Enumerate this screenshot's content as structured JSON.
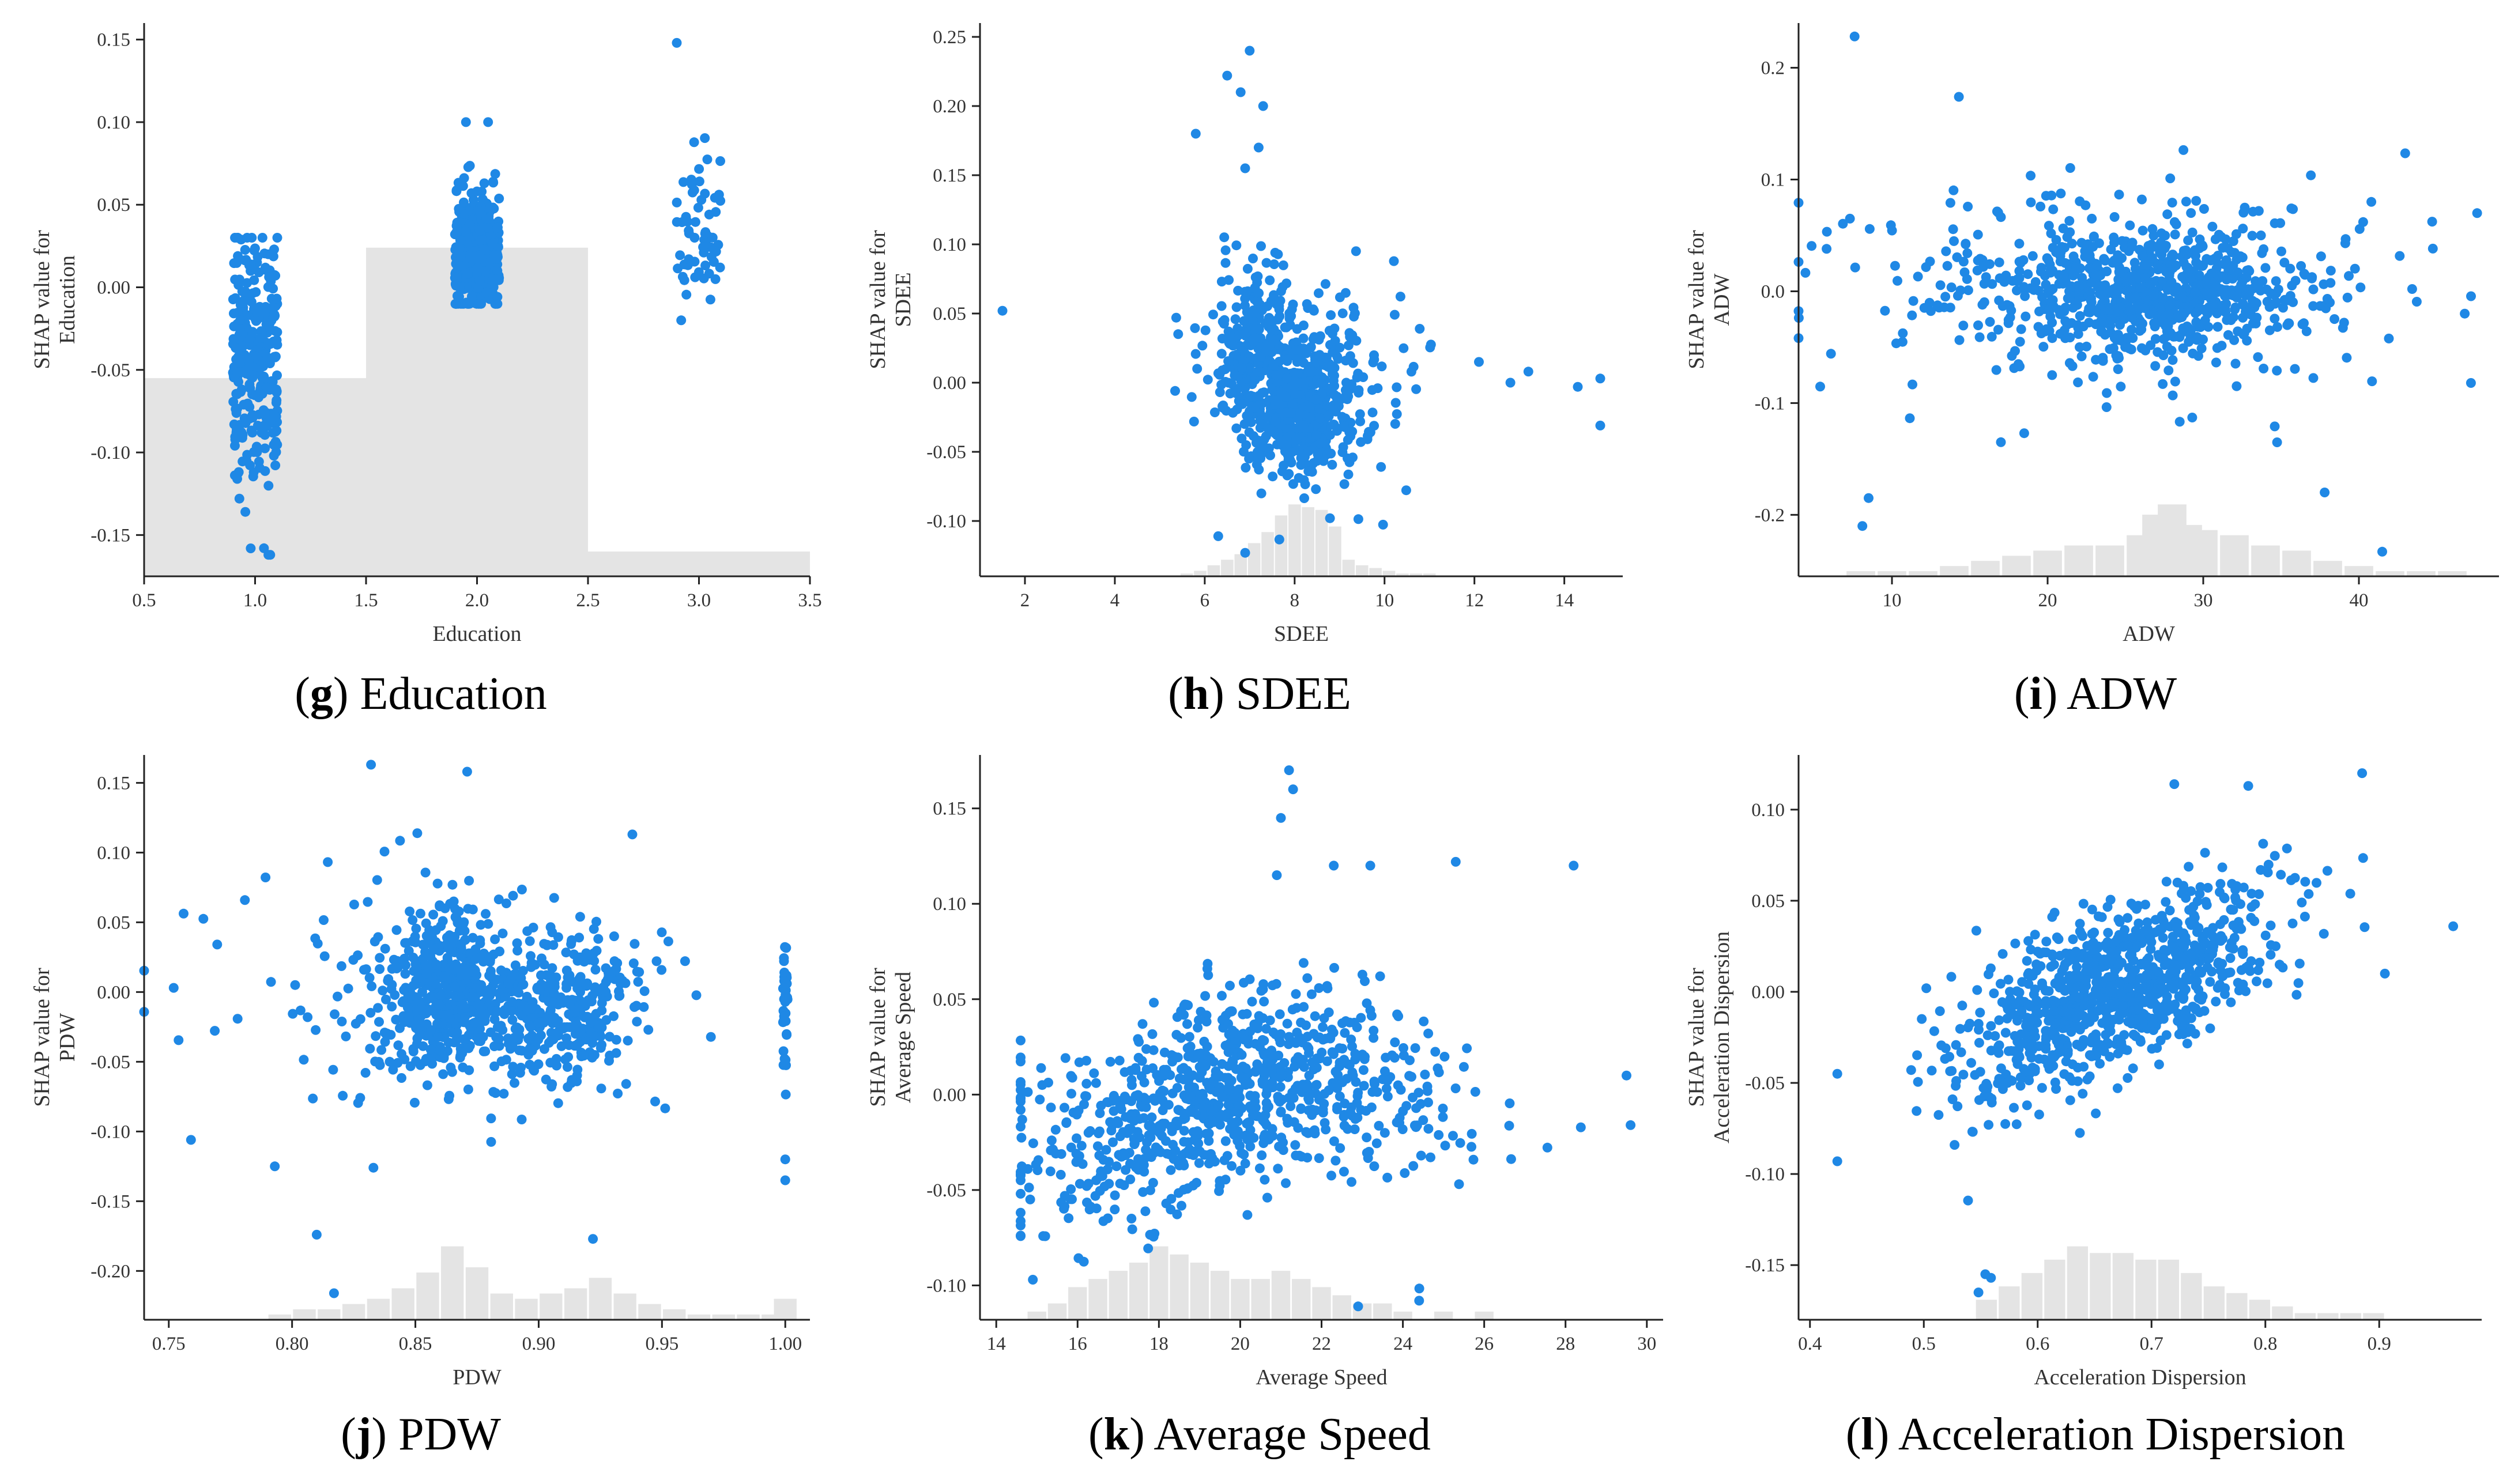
{
  "colors": {
    "points": "#1f88e5",
    "histogram": "#e4e4e4"
  },
  "chart_data": [
    {
      "type": "scatter",
      "panel_letter": "g",
      "caption": "Education",
      "xlabel": "Education",
      "ylabel": [
        "SHAP value for",
        "Education"
      ],
      "xlim": [
        0.5,
        3.5
      ],
      "ylim": [
        -0.175,
        0.16
      ],
      "xticks": [
        0.5,
        1.0,
        1.5,
        2.0,
        2.5,
        3.0,
        3.5
      ],
      "xtick_labels": [
        "0.5",
        "1.0",
        "1.5",
        "2.0",
        "2.5",
        "3.0",
        "3.5"
      ],
      "yticks": [
        -0.15,
        -0.1,
        -0.05,
        0.0,
        0.05,
        0.1,
        0.15
      ],
      "ytick_labels": [
        "-0.15",
        "-0.10",
        "-0.05",
        "0.00",
        "0.05",
        "0.10",
        "0.15"
      ],
      "background_steps": [
        {
          "x0": 0.5,
          "x1": 1.5,
          "y": -0.055
        },
        {
          "x0": 1.5,
          "x1": 2.5,
          "y": 0.024
        },
        {
          "x0": 2.5,
          "x1": 3.5,
          "y": -0.16
        }
      ],
      "groups": [
        {
          "x": 1.0,
          "xjitter": 0.1,
          "y_mean": -0.04,
          "y_std": 0.035,
          "y_min": -0.162,
          "y_max": 0.03,
          "n": 320
        },
        {
          "x": 2.0,
          "xjitter": 0.1,
          "y_mean": 0.02,
          "y_std": 0.018,
          "y_min": -0.01,
          "y_max": 0.1,
          "n": 450
        },
        {
          "x": 3.0,
          "xjitter": 0.1,
          "y_mean": 0.035,
          "y_std": 0.02,
          "y_min": -0.02,
          "y_max": 0.148,
          "n": 60
        }
      ],
      "points": [
        {
          "x": 2.9,
          "y": 0.148
        },
        {
          "x": 2.92,
          "y": -0.02
        },
        {
          "x": 1.04,
          "y": -0.158
        },
        {
          "x": 1.06,
          "y": -0.162
        },
        {
          "x": 1.1,
          "y": 0.03
        },
        {
          "x": 1.95,
          "y": 0.1
        },
        {
          "x": 2.05,
          "y": 0.1
        }
      ]
    },
    {
      "type": "scatter",
      "panel_letter": "h",
      "caption": "SDEE",
      "xlabel": "SDEE",
      "ylabel": [
        "SHAP value for",
        "SDEE"
      ],
      "xlim": [
        1,
        15.3
      ],
      "ylim": [
        -0.14,
        0.26
      ],
      "xticks": [
        2,
        4,
        6,
        8,
        10,
        12,
        14
      ],
      "xtick_labels": [
        "2",
        "4",
        "6",
        "8",
        "10",
        "12",
        "14"
      ],
      "yticks": [
        -0.1,
        -0.05,
        0.0,
        0.05,
        0.1,
        0.15,
        0.2,
        0.25
      ],
      "ytick_labels": [
        "-0.10",
        "-0.05",
        "0.00",
        "0.05",
        "0.10",
        "0.15",
        "0.20",
        "0.25"
      ],
      "histogram": {
        "centers": [
          5.6,
          5.9,
          6.2,
          6.5,
          6.8,
          7.1,
          7.4,
          7.7,
          8.0,
          8.3,
          8.6,
          8.9,
          9.2,
          9.5,
          9.8,
          10.1,
          10.4,
          10.7,
          11.0
        ],
        "heights": [
          1,
          2,
          4,
          6,
          8,
          12,
          16,
          22,
          26,
          25,
          24,
          18,
          6,
          4,
          3,
          2,
          1,
          1,
          1
        ]
      },
      "clusters": [
        {
          "cx": 8.1,
          "cy": -0.02,
          "sx": 0.55,
          "sy": 0.022,
          "n": 430
        },
        {
          "cx": 7.1,
          "cy": 0.03,
          "sx": 0.45,
          "sy": 0.03,
          "n": 200
        },
        {
          "cx": 8.3,
          "cy": 0.0,
          "sx": 1.2,
          "sy": 0.035,
          "n": 210
        }
      ],
      "points": [
        {
          "x": 1.5,
          "y": 0.052
        },
        {
          "x": 7.0,
          "y": 0.24
        },
        {
          "x": 6.5,
          "y": 0.222
        },
        {
          "x": 6.8,
          "y": 0.21
        },
        {
          "x": 7.3,
          "y": 0.2
        },
        {
          "x": 5.8,
          "y": 0.18
        },
        {
          "x": 7.2,
          "y": 0.17
        },
        {
          "x": 6.9,
          "y": 0.155
        },
        {
          "x": 12.1,
          "y": 0.015
        },
        {
          "x": 12.8,
          "y": 0.0
        },
        {
          "x": 13.2,
          "y": 0.008
        },
        {
          "x": 14.3,
          "y": -0.003
        },
        {
          "x": 14.8,
          "y": 0.003
        },
        {
          "x": 14.8,
          "y": -0.031
        },
        {
          "x": 6.3,
          "y": -0.111
        },
        {
          "x": 6.9,
          "y": -0.123
        }
      ]
    },
    {
      "type": "scatter",
      "panel_letter": "i",
      "caption": "ADW",
      "xlabel": "ADW",
      "ylabel": [
        "SHAP value for",
        "ADW"
      ],
      "xlim": [
        4,
        49
      ],
      "ylim": [
        -0.255,
        0.24
      ],
      "xticks": [
        10,
        20,
        30,
        40
      ],
      "xtick_labels": [
        "10",
        "20",
        "30",
        "40"
      ],
      "yticks": [
        -0.2,
        -0.1,
        0.0,
        0.1,
        0.2
      ],
      "ytick_labels": [
        "-0.2",
        "-0.1",
        "0.0",
        "0.1",
        "0.2"
      ],
      "histogram": {
        "centers": [
          8,
          10,
          12,
          14,
          16,
          18,
          20,
          22,
          24,
          26,
          27,
          28,
          29,
          30,
          32,
          34,
          36,
          38,
          40,
          42,
          44,
          46
        ],
        "heights": [
          1,
          1,
          1,
          2,
          3,
          4,
          5,
          6,
          6,
          8,
          12,
          14,
          10,
          9,
          8,
          6,
          5,
          3,
          2,
          1,
          1,
          1
        ]
      },
      "clusters": [
        {
          "cx": 27,
          "cy": 0.0,
          "sx": 4.5,
          "sy": 0.025,
          "n": 520
        },
        {
          "cx": 24,
          "cy": 0.0,
          "sx": 8.5,
          "sy": 0.045,
          "n": 380
        }
      ],
      "points": [
        {
          "x": 7.6,
          "y": 0.228
        },
        {
          "x": 14.3,
          "y": 0.174
        },
        {
          "x": 17.0,
          "y": -0.135
        },
        {
          "x": 8.1,
          "y": -0.21
        },
        {
          "x": 8.5,
          "y": -0.185
        },
        {
          "x": 37.8,
          "y": -0.18
        },
        {
          "x": 41.5,
          "y": -0.233
        },
        {
          "x": 47.2,
          "y": -0.082
        },
        {
          "x": 46.8,
          "y": -0.02
        },
        {
          "x": 5.8,
          "y": 0.038
        },
        {
          "x": 7.3,
          "y": 0.065
        },
        {
          "x": 40.8,
          "y": 0.08
        }
      ]
    },
    {
      "type": "scatter",
      "panel_letter": "j",
      "caption": "PDW",
      "xlabel": "PDW",
      "ylabel": [
        "SHAP value for",
        "PDW"
      ],
      "xlim": [
        0.74,
        1.01
      ],
      "ylim": [
        -0.235,
        0.17
      ],
      "xticks": [
        0.75,
        0.8,
        0.85,
        0.9,
        0.95,
        1.0
      ],
      "xtick_labels": [
        "0.75",
        "0.80",
        "0.85",
        "0.90",
        "0.95",
        "1.00"
      ],
      "yticks": [
        -0.2,
        -0.15,
        -0.1,
        -0.05,
        0.0,
        0.05,
        0.1,
        0.15
      ],
      "ytick_labels": [
        "-0.20",
        "-0.15",
        "-0.10",
        "-0.05",
        "0.00",
        "0.05",
        "0.10",
        "0.15"
      ],
      "histogram": {
        "centers": [
          0.795,
          0.805,
          0.815,
          0.825,
          0.835,
          0.845,
          0.855,
          0.865,
          0.875,
          0.885,
          0.895,
          0.905,
          0.915,
          0.925,
          0.935,
          0.945,
          0.955,
          0.965,
          0.975,
          0.985,
          0.995,
          1.0
        ],
        "heights": [
          1,
          2,
          2,
          3,
          4,
          6,
          9,
          14,
          10,
          5,
          4,
          5,
          6,
          8,
          5,
          3,
          2,
          1,
          1,
          1,
          1,
          4
        ]
      },
      "clusters": [
        {
          "cx": 0.865,
          "cy": 0.0,
          "sx": 0.012,
          "sy": 0.03,
          "n": 380
        },
        {
          "cx": 0.91,
          "cy": -0.012,
          "sx": 0.015,
          "sy": 0.025,
          "n": 260
        },
        {
          "cx": 0.86,
          "cy": 0.0,
          "sx": 0.045,
          "sy": 0.04,
          "n": 260
        },
        {
          "cx": 1.0,
          "cy": 0.0,
          "sx": 0.0005,
          "sy": 0.03,
          "n": 40
        }
      ],
      "points": [
        {
          "x": 0.832,
          "y": 0.163
        },
        {
          "x": 0.871,
          "y": 0.158
        },
        {
          "x": 0.938,
          "y": 0.113
        },
        {
          "x": 0.759,
          "y": -0.106
        },
        {
          "x": 0.793,
          "y": -0.125
        },
        {
          "x": 0.81,
          "y": -0.174
        },
        {
          "x": 0.817,
          "y": -0.216
        },
        {
          "x": 0.833,
          "y": -0.126
        },
        {
          "x": 0.922,
          "y": -0.177
        },
        {
          "x": 1.0,
          "y": -0.135
        },
        {
          "x": 1.0,
          "y": -0.12
        },
        {
          "x": 0.752,
          "y": 0.003
        }
      ]
    },
    {
      "type": "scatter",
      "panel_letter": "k",
      "caption": "Average Speed",
      "xlabel": "Average Speed",
      "ylabel": [
        "SHAP value for",
        "Average Speed"
      ],
      "xlim": [
        13.6,
        30.4
      ],
      "ylim": [
        -0.118,
        0.178
      ],
      "xticks": [
        14,
        16,
        18,
        20,
        22,
        24,
        26,
        28,
        30
      ],
      "xtick_labels": [
        "14",
        "16",
        "18",
        "20",
        "22",
        "24",
        "26",
        "28",
        "30"
      ],
      "yticks": [
        -0.1,
        -0.05,
        0.0,
        0.05,
        0.1,
        0.15
      ],
      "ytick_labels": [
        "-0.10",
        "-0.05",
        "0.00",
        "0.05",
        "0.10",
        "0.15"
      ],
      "histogram": {
        "centers": [
          15,
          15.5,
          16,
          16.5,
          17,
          17.5,
          18,
          18.5,
          19,
          19.5,
          20,
          20.5,
          21,
          21.5,
          22,
          22.5,
          23,
          23.5,
          24,
          25,
          26
        ],
        "heights": [
          1,
          2,
          4,
          5,
          6,
          7,
          9,
          8,
          7,
          6,
          5,
          5,
          6,
          5,
          4,
          3,
          2,
          2,
          1,
          1,
          1
        ]
      },
      "trend": {
        "x": [
          15,
          17,
          19,
          21,
          23,
          25,
          27,
          29
        ],
        "y": [
          -0.03,
          -0.022,
          0.0,
          0.012,
          0.008,
          0.0,
          -0.005,
          -0.008
        ]
      },
      "trend_samples": {
        "n": 900,
        "x_mean": 19.6,
        "x_std": 2.6,
        "x_min": 14.6,
        "x_max": 29.6,
        "y_std": 0.025
      },
      "points": [
        {
          "x": 21.2,
          "y": 0.17
        },
        {
          "x": 21.3,
          "y": 0.16
        },
        {
          "x": 21.0,
          "y": 0.145
        },
        {
          "x": 25.3,
          "y": 0.122
        },
        {
          "x": 28.2,
          "y": 0.12
        },
        {
          "x": 22.3,
          "y": 0.12
        },
        {
          "x": 23.2,
          "y": 0.12
        },
        {
          "x": 20.9,
          "y": 0.115
        },
        {
          "x": 22.9,
          "y": -0.111
        },
        {
          "x": 24.4,
          "y": -0.108
        },
        {
          "x": 29.5,
          "y": 0.01
        },
        {
          "x": 29.6,
          "y": -0.016
        },
        {
          "x": 14.9,
          "y": -0.097
        }
      ]
    },
    {
      "type": "scatter",
      "panel_letter": "l",
      "caption": "Acceleration Dispersion",
      "xlabel": "Acceleration Dispersion",
      "ylabel": [
        "SHAP value for",
        "Acceleration Dispersion"
      ],
      "xlim": [
        0.39,
        0.99
      ],
      "ylim": [
        -0.18,
        0.13
      ],
      "xticks": [
        0.4,
        0.5,
        0.6,
        0.7,
        0.8,
        0.9
      ],
      "xtick_labels": [
        "0.4",
        "0.5",
        "0.6",
        "0.7",
        "0.8",
        "0.9"
      ],
      "yticks": [
        -0.15,
        -0.1,
        -0.05,
        0.0,
        0.05,
        0.1
      ],
      "ytick_labels": [
        "-0.15",
        "-0.10",
        "-0.05",
        "0.00",
        "0.05",
        "0.10"
      ],
      "histogram": {
        "centers": [
          0.555,
          0.575,
          0.595,
          0.615,
          0.635,
          0.655,
          0.675,
          0.695,
          0.715,
          0.735,
          0.755,
          0.775,
          0.795,
          0.815,
          0.835,
          0.855,
          0.875,
          0.895
        ],
        "heights": [
          3,
          5,
          7,
          9,
          11,
          10,
          10,
          9,
          9,
          7,
          5,
          4,
          3,
          2,
          1,
          1,
          1,
          1
        ]
      },
      "trend": {
        "x": [
          0.5,
          0.55,
          0.6,
          0.65,
          0.7,
          0.75,
          0.8,
          0.85,
          0.9,
          0.95
        ],
        "y": [
          -0.04,
          -0.035,
          -0.015,
          -0.003,
          0.008,
          0.022,
          0.035,
          0.042,
          0.05,
          0.04
        ]
      },
      "trend_samples": {
        "n": 950,
        "x_mean": 0.665,
        "x_std": 0.07,
        "x_min": 0.48,
        "x_max": 0.96,
        "y_std": 0.022
      },
      "points": [
        {
          "x": 0.424,
          "y": -0.045
        },
        {
          "x": 0.424,
          "y": -0.093
        },
        {
          "x": 0.554,
          "y": -0.155
        },
        {
          "x": 0.559,
          "y": -0.157
        },
        {
          "x": 0.548,
          "y": -0.165
        },
        {
          "x": 0.885,
          "y": 0.12
        },
        {
          "x": 0.965,
          "y": 0.036
        },
        {
          "x": 0.72,
          "y": 0.114
        },
        {
          "x": 0.785,
          "y": 0.113
        },
        {
          "x": 0.905,
          "y": 0.01
        }
      ]
    }
  ]
}
